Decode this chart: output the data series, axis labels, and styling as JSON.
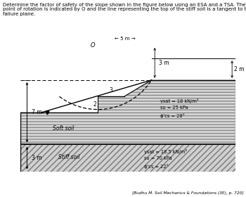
{
  "title_line1": "Determine the factor of safety of the slope shown in the figure below using an ESA and a TSA. The",
  "title_line2": "point of rotation is indicated by O and the line representing the top of the stiff soil is a tangent to the",
  "title_line3": "failure plane.",
  "caption": "[Budhu M. Soil Mechanics & Foundations (3E), p. 720]",
  "soft_soil_label": "Soft soil",
  "stiff_soil_label": "Stiff soil",
  "soft_prop1": "γsat = 18 kN/m³",
  "soft_prop2": "su = 25 kPa",
  "soft_prop3": "ϕ'cs = 28°",
  "stiff_prop1": "γsat = 18.5 kN/m³",
  "stiff_prop2": "su = 70 kPa",
  "stiff_prop3": "ϕ'cs = 22°",
  "dim_7m": "7 m",
  "dim_3m_left": "3 m",
  "dim_3m_top": "3 m",
  "dim_5m": "5 m",
  "dim_2m": "2 m",
  "label_O": "O",
  "label_2": "2",
  "label_3": "3",
  "soft_face_color": "#d4d4d4",
  "stiff_face_color": "#c8c8c8"
}
